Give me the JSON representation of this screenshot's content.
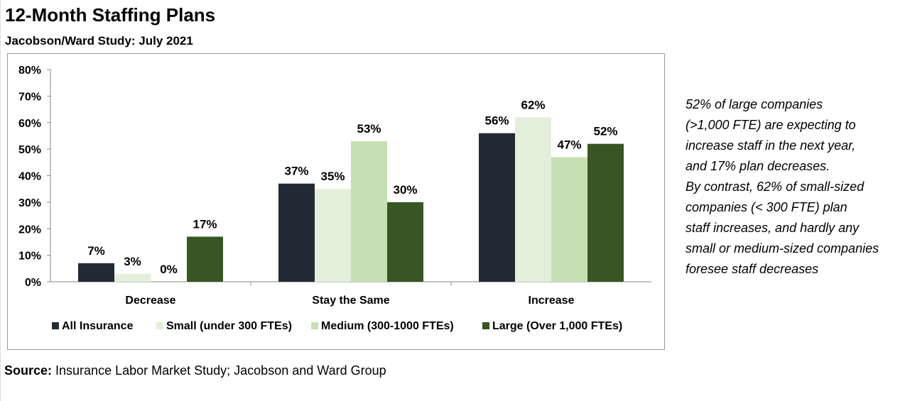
{
  "title": "12-Month Staffing Plans",
  "subtitle": "Jacobson/Ward Study: July 2021",
  "note_lines": [
    "52% of large companies",
    "(>1,000 FTE) are expecting to",
    "increase staff in the next year,",
    "and 17% plan decreases.",
    "By contrast, 62% of small-sized",
    "companies (< 300 FTE) plan",
    "staff increases, and hardly any",
    "small or medium-sized companies",
    "foresee staff decreases"
  ],
  "source": {
    "label": "Source:",
    "text": " Insurance Labor Market Study; Jacobson and Ward Group"
  },
  "chart_data": {
    "type": "bar",
    "title": "12-Month Staffing Plans",
    "xlabel": "",
    "ylabel": "",
    "categories": [
      "Decrease",
      "Stay the Same",
      "Increase"
    ],
    "ylim": [
      0,
      80
    ],
    "yticks": [
      "0%",
      "10%",
      "20%",
      "30%",
      "40%",
      "50%",
      "60%",
      "70%",
      "80%"
    ],
    "legend_position": "bottom",
    "grid": false,
    "series": [
      {
        "name": "All Insurance",
        "color": "#222a35",
        "values": [
          7,
          37,
          56
        ]
      },
      {
        "name": "Small (under 300 FTEs)",
        "color": "#e2efda",
        "values": [
          3,
          35,
          62
        ]
      },
      {
        "name": "Medium (300-1000 FTEs)",
        "color": "#c6e0b4",
        "values": [
          0,
          53,
          47
        ]
      },
      {
        "name": "Large (Over 1,000 FTEs)",
        "color": "#375623",
        "values": [
          17,
          30,
          52
        ]
      }
    ]
  }
}
